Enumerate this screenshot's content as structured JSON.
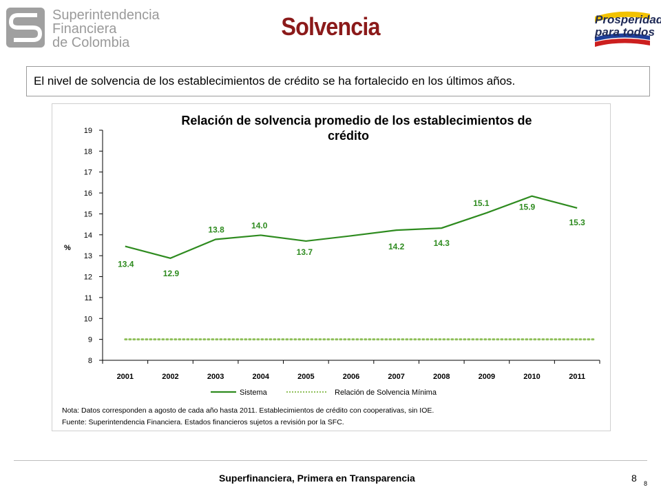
{
  "header": {
    "logo_lines": [
      "Superintendencia",
      "Financiera",
      "de Colombia"
    ],
    "title": "Solvencia",
    "right_logo_lines": [
      "Prosperidad",
      "para todos"
    ]
  },
  "subtitle": "El nivel de solvencia de los establecimientos de crédito se ha fortalecido en los últimos años.",
  "chart_data": {
    "type": "line",
    "title_lines": [
      "Relación de solvencia promedio de los establecimientos de",
      "crédito"
    ],
    "ylabel": "%",
    "xlabel": "",
    "ylim": [
      8,
      19
    ],
    "yticks": [
      8,
      9,
      10,
      11,
      12,
      13,
      14,
      15,
      16,
      17,
      18,
      19
    ],
    "categories": [
      "2001",
      "2002",
      "2003",
      "2004",
      "2005",
      "2006",
      "2007",
      "2008",
      "2009",
      "2010",
      "2011"
    ],
    "series": [
      {
        "name": "Sistema",
        "color": "#2e8b1f",
        "values": [
          13.45,
          12.88,
          13.78,
          13.98,
          13.7,
          13.95,
          14.22,
          14.32,
          15.05,
          15.85,
          15.28
        ],
        "labels": [
          "13.4",
          "12.9",
          "13.8",
          "14.0",
          "13.7",
          "",
          "14.2",
          "14.3",
          "15.1",
          "15.9",
          "15.3"
        ]
      },
      {
        "name": "Relación de Solvencia Mínima",
        "color": "#8fbf5a",
        "values": [
          9,
          9,
          9,
          9,
          9,
          9,
          9,
          9,
          9,
          9,
          9
        ],
        "labels": []
      }
    ],
    "notes": [
      "Nota: Datos corresponden a agosto de cada año hasta 2011. Establecimientos de crédito con cooperativas, sin IOE.",
      "Fuente: Superintendencia Financiera. Estados financieros sujetos a revisión por la SFC."
    ],
    "legend_position": "bottom",
    "grid": false
  },
  "footer": {
    "text": "Superfinanciera, Primera en Transparencia",
    "page_number": "8",
    "page_number_small": "8"
  }
}
